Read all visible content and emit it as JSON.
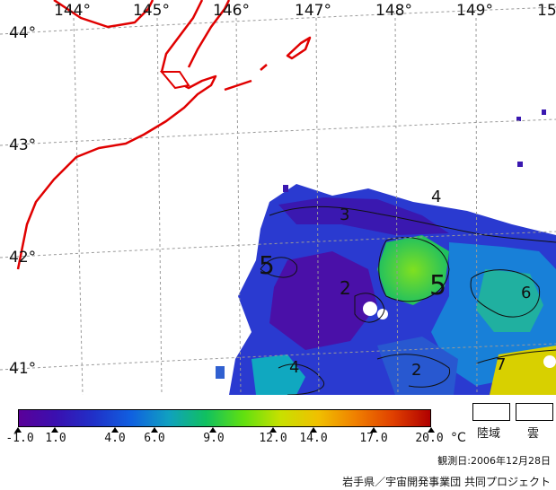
{
  "map": {
    "lon_labels": [
      "144°",
      "145°",
      "146°",
      "147°",
      "148°",
      "149°",
      "15"
    ],
    "lat_labels": [
      "44°",
      "43°",
      "42°",
      "41°"
    ],
    "contour_labels": [
      "4",
      "3",
      "5",
      "5",
      "2",
      "6",
      "4",
      "2",
      "7"
    ]
  },
  "colorbar": {
    "ticks": [
      "-1.0",
      "1.0",
      "4.0",
      "6.0",
      "9.0",
      "12.0",
      "14.0",
      "17.0",
      "20.0"
    ],
    "unit": "°C",
    "stops": [
      "#5a0099",
      "#3a10b0",
      "#2030c8",
      "#1060e0",
      "#10a0c0",
      "#10c060",
      "#60e010",
      "#c8e000",
      "#f0c000",
      "#f08000",
      "#e04000",
      "#b00000"
    ]
  },
  "legend": {
    "land_label": "陸域",
    "cloud_label": "雲"
  },
  "footer": {
    "observation_date": "観測日:2006年12月28日",
    "credit": "岩手県／宇宙開発事業団 共同プロジェクト"
  },
  "colors": {
    "coast": "#e00000",
    "grid": "#999999"
  }
}
